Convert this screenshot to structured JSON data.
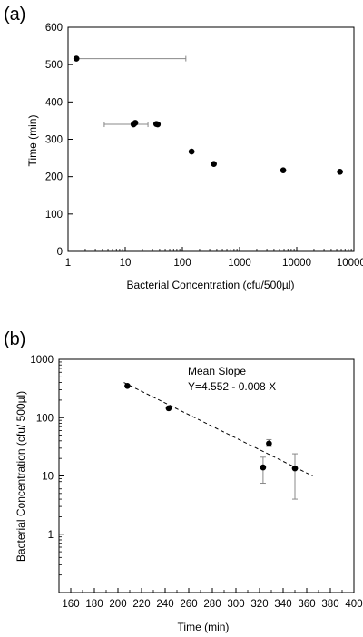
{
  "chart_data": [
    {
      "panel_label": "(a)",
      "type": "scatter",
      "xscale": "log",
      "xlim": [
        1,
        100000
      ],
      "ylim": [
        0,
        600
      ],
      "xlabel": "Bacterial Concentration (cfu/500µl)",
      "ylabel": "Time (min)",
      "xticks": [
        1,
        10,
        100,
        1000,
        10000,
        100000
      ],
      "xtick_labels": [
        "1",
        "10",
        "100",
        "1000",
        "10000",
        "100000"
      ],
      "yticks": [
        0,
        100,
        200,
        300,
        400,
        500,
        600
      ],
      "ytick_labels": [
        "0",
        "100",
        "200",
        "300",
        "400",
        "500",
        "600"
      ],
      "points": [
        {
          "x": 1.4,
          "y": 516,
          "xerr": [
            1.4,
            115
          ]
        },
        {
          "x": 14,
          "y": 340,
          "xerr": [
            4.3,
            25
          ]
        },
        {
          "x": 15,
          "y": 344
        },
        {
          "x": 35,
          "y": 341
        },
        {
          "x": 37,
          "y": 340
        },
        {
          "x": 145,
          "y": 267
        },
        {
          "x": 355,
          "y": 234
        },
        {
          "x": 5800,
          "y": 217
        },
        {
          "x": 57000,
          "y": 213
        }
      ],
      "grid": false
    },
    {
      "panel_label": "(b)",
      "type": "scatter",
      "yscale": "log",
      "xlim": [
        150,
        400
      ],
      "ylim": [
        0.1,
        1000
      ],
      "xlabel": "Time (min)",
      "ylabel": "Bacterial Concentration (cfu/ 500µl)",
      "xticks": [
        160,
        180,
        200,
        220,
        240,
        260,
        280,
        300,
        320,
        340,
        360,
        380,
        400
      ],
      "xtick_labels": [
        "160",
        "180",
        "200",
        "220",
        "240",
        "260",
        "280",
        "300",
        "320",
        "340",
        "360",
        "380",
        "400"
      ],
      "yticks": [
        1,
        10,
        100,
        1000
      ],
      "ytick_labels": [
        "1",
        "10",
        "100",
        "1000"
      ],
      "points": [
        {
          "x": 208,
          "y": 350
        },
        {
          "x": 243,
          "y": 145
        },
        {
          "x": 323,
          "y": 14,
          "yerr": [
            7.5,
            21
          ]
        },
        {
          "x": 328,
          "y": 36,
          "yerr": [
            32,
            42
          ]
        },
        {
          "x": 350,
          "y": 13.5,
          "yerr": [
            4,
            24
          ]
        }
      ],
      "fit": {
        "x_range": [
          205,
          365
        ],
        "y_range": [
          400,
          10
        ],
        "style": "dashed"
      },
      "annotation_title": "Mean Slope",
      "annotation_equation": "Y=4.552 - 0.008 X",
      "grid": false
    }
  ]
}
